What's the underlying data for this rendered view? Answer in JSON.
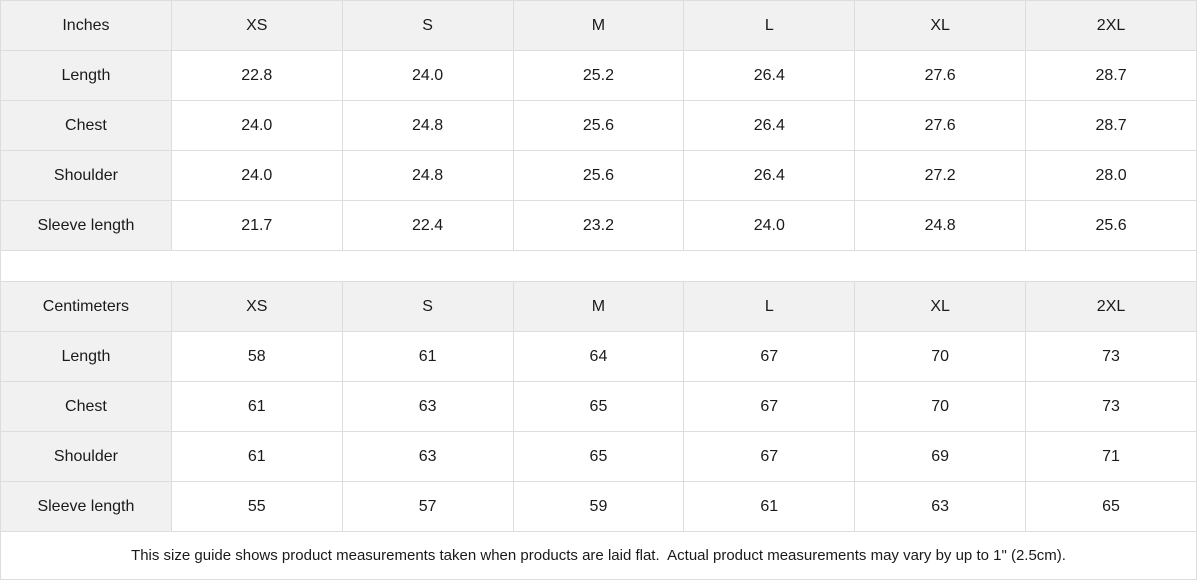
{
  "colors": {
    "header_background": "#f1f1f1",
    "cell_background": "#ffffff",
    "border": "#dddddd",
    "text": "#1a1a1a"
  },
  "tables": [
    {
      "unit_label": "Inches",
      "sizes": [
        "XS",
        "S",
        "M",
        "L",
        "XL",
        "2XL"
      ],
      "rows": [
        {
          "label": "Length",
          "values": [
            "22.8",
            "24.0",
            "25.2",
            "26.4",
            "27.6",
            "28.7"
          ]
        },
        {
          "label": "Chest",
          "values": [
            "24.0",
            "24.8",
            "25.6",
            "26.4",
            "27.6",
            "28.7"
          ]
        },
        {
          "label": "Shoulder",
          "values": [
            "24.0",
            "24.8",
            "25.6",
            "26.4",
            "27.2",
            "28.0"
          ]
        },
        {
          "label": "Sleeve length",
          "values": [
            "21.7",
            "22.4",
            "23.2",
            "24.0",
            "24.8",
            "25.6"
          ]
        }
      ]
    },
    {
      "unit_label": "Centimeters",
      "sizes": [
        "XS",
        "S",
        "M",
        "L",
        "XL",
        "2XL"
      ],
      "rows": [
        {
          "label": "Length",
          "values": [
            "58",
            "61",
            "64",
            "67",
            "70",
            "73"
          ]
        },
        {
          "label": "Chest",
          "values": [
            "61",
            "63",
            "65",
            "67",
            "70",
            "73"
          ]
        },
        {
          "label": "Shoulder",
          "values": [
            "61",
            "63",
            "65",
            "67",
            "69",
            "71"
          ]
        },
        {
          "label": "Sleeve length",
          "values": [
            "55",
            "57",
            "59",
            "61",
            "63",
            "65"
          ]
        }
      ]
    }
  ],
  "footer": {
    "note": "This size guide shows product measurements taken when products are laid flat.  Actual product measurements may vary by up to 1\" (2.5cm)."
  }
}
